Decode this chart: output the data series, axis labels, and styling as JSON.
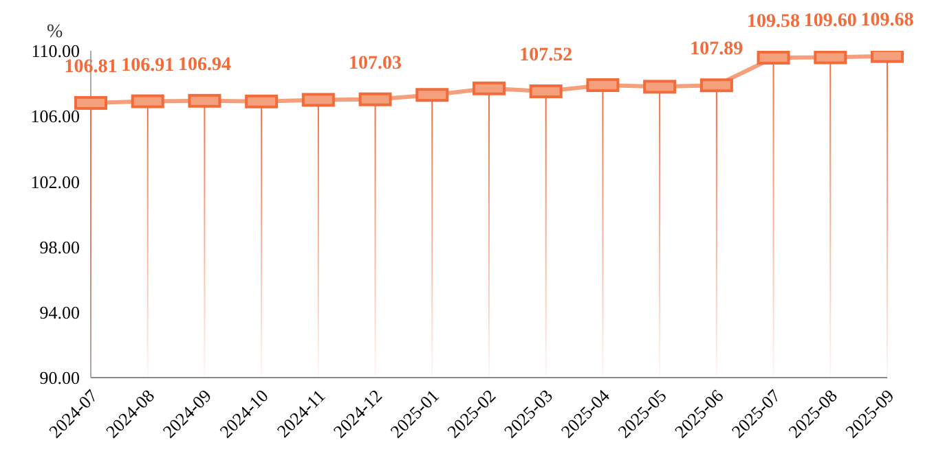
{
  "chart_data": {
    "type": "lollipop",
    "ylabel": "%",
    "categories": [
      "2024-07",
      "2024-08",
      "2024-09",
      "2024-10",
      "2024-11",
      "2024-12",
      "2025-01",
      "2025-02",
      "2025-03",
      "2025-04",
      "2025-05",
      "2025-06",
      "2025-07",
      "2025-08",
      "2025-09"
    ],
    "series": [
      {
        "type": "line",
        "marker": "none",
        "color": "#f4a07c",
        "values": [
          106.81,
          106.91,
          106.94,
          106.9,
          107.0,
          107.03,
          107.3,
          107.7,
          107.52,
          107.9,
          107.8,
          107.89,
          109.58,
          109.6,
          109.68
        ]
      },
      {
        "color": "#f26b3a",
        "values": [
          106.81,
          106.91,
          106.94,
          106.9,
          107.0,
          107.03,
          107.3,
          107.7,
          107.52,
          107.9,
          107.8,
          107.89,
          109.58,
          109.6,
          109.68
        ],
        "value_labels": [
          "106.81",
          "106.91",
          "106.94",
          null,
          null,
          "107.03",
          null,
          null,
          "107.52",
          null,
          null,
          "107.89",
          "109.58",
          "109.60",
          "109.68"
        ]
      }
    ],
    "ylim": [
      90,
      110
    ],
    "yticks": [
      {
        "value": 90,
        "label": "90.00"
      },
      {
        "value": 94,
        "label": "94.00"
      },
      {
        "value": 98,
        "label": "98.00"
      },
      {
        "value": 102,
        "label": "102.00"
      },
      {
        "value": 106,
        "label": "106.00"
      },
      {
        "value": 110,
        "label": "110.00"
      }
    ],
    "marker": "square",
    "grid": false,
    "legend": false
  }
}
